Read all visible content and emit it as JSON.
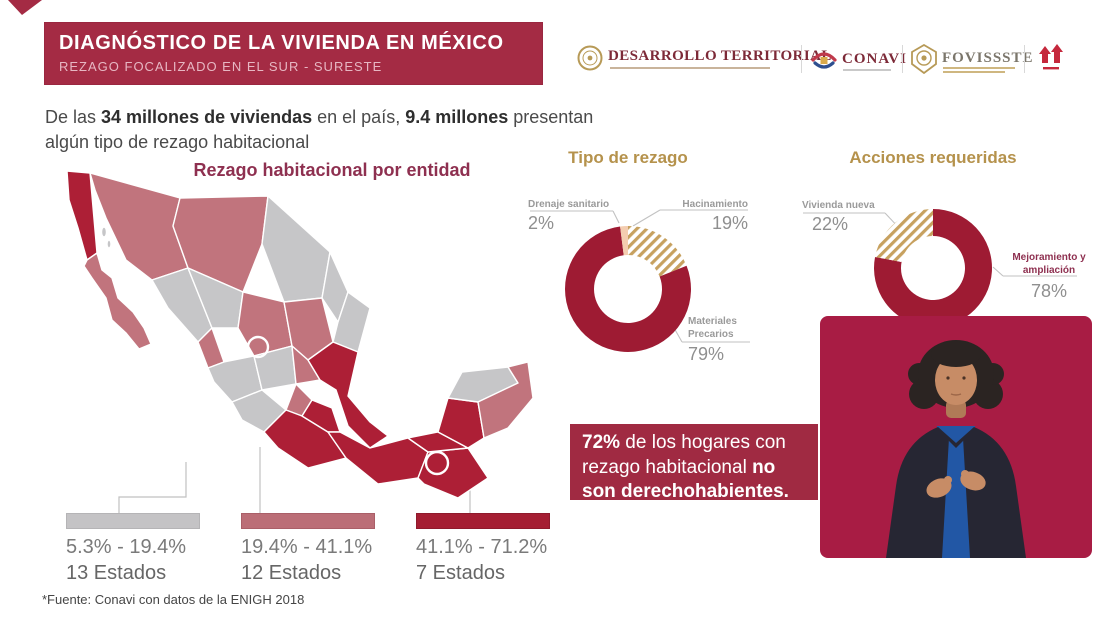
{
  "header": {
    "title": "DIAGNÓSTICO DE LA VIVIENDA EN MÉXICO",
    "subtitle": "REZAGO FOCALIZADO EN EL SUR - SURESTE"
  },
  "logos": {
    "desarrollo_label": "DESARROLLO TERRITORIAL",
    "conavi_label": "CONAVI",
    "fovissste_label": "FOVISSSTE"
  },
  "intro": {
    "part1": "De las ",
    "bold1": "34 millones de viviendas",
    "part2": " en el país, ",
    "bold2": "9.4 millones",
    "part3": " presentan algún tipo de rezago habitacional"
  },
  "map": {
    "title": "Rezago habitacional por entidad",
    "source": "*Fuente: Conavi con datos de la ENIGH 2018",
    "legend": [
      {
        "range": "5.3% - 19.4%",
        "count": "13 Estados",
        "color": "#c4c3c5"
      },
      {
        "range": "19.4% - 41.1%",
        "count": "12 Estados",
        "color": "#bb6e77"
      },
      {
        "range": "41.1% - 71.2%",
        "count": "7 Estados",
        "color": "#a51e33"
      }
    ]
  },
  "stat": {
    "bold1": "72%",
    "text1": " de los hogares con rezago habitacional ",
    "bold2": "no son derechohabientes."
  },
  "chart_data": [
    {
      "type": "pie",
      "variant": "donut",
      "title": "Tipo de rezago",
      "start_angle_deg": -90,
      "direction": "clockwise",
      "segments": [
        {
          "label": "Hacinamiento",
          "value": 19,
          "display": "19%",
          "style": "hatch"
        },
        {
          "label": "Materiales Precarios",
          "value": 79,
          "display": "79%",
          "style": "solid-dark"
        },
        {
          "label": "Drenaje sanitario",
          "value": 2,
          "display": "2%",
          "style": "solid-peach"
        }
      ]
    },
    {
      "type": "pie",
      "variant": "donut",
      "title": "Acciones requeridas",
      "start_angle_deg": -90,
      "direction": "clockwise",
      "segments": [
        {
          "label": "Mejoramiento y ampliación",
          "value": 78,
          "display": "78%",
          "style": "solid-dark"
        },
        {
          "label": "Vivienda nueva",
          "value": 22,
          "display": "22%",
          "style": "hatch"
        }
      ]
    },
    {
      "type": "heatmap",
      "variant": "choropleth-map",
      "title": "Rezago habitacional por entidad",
      "bins": [
        {
          "range": "5.3% - 19.4%",
          "states": 13,
          "color": "#c4c3c5"
        },
        {
          "range": "19.4% - 41.1%",
          "states": 12,
          "color": "#bb6e77"
        },
        {
          "range": "41.1% - 71.2%",
          "states": 7,
          "color": "#a51e33"
        }
      ],
      "source": "*Fuente: Conavi con datos de la ENIGH 2018"
    }
  ],
  "colors": {
    "accent_red": "#a42b44",
    "donut_red": "#9e1b33",
    "hatch_gold": "#c7a15f",
    "peach": "#f4cdb0",
    "map_gray": "#c6c6c8",
    "map_rose": "#c1747d",
    "map_dark": "#ad1f36",
    "title_gold": "#b5924c",
    "title_maroon": "#8e3050"
  }
}
